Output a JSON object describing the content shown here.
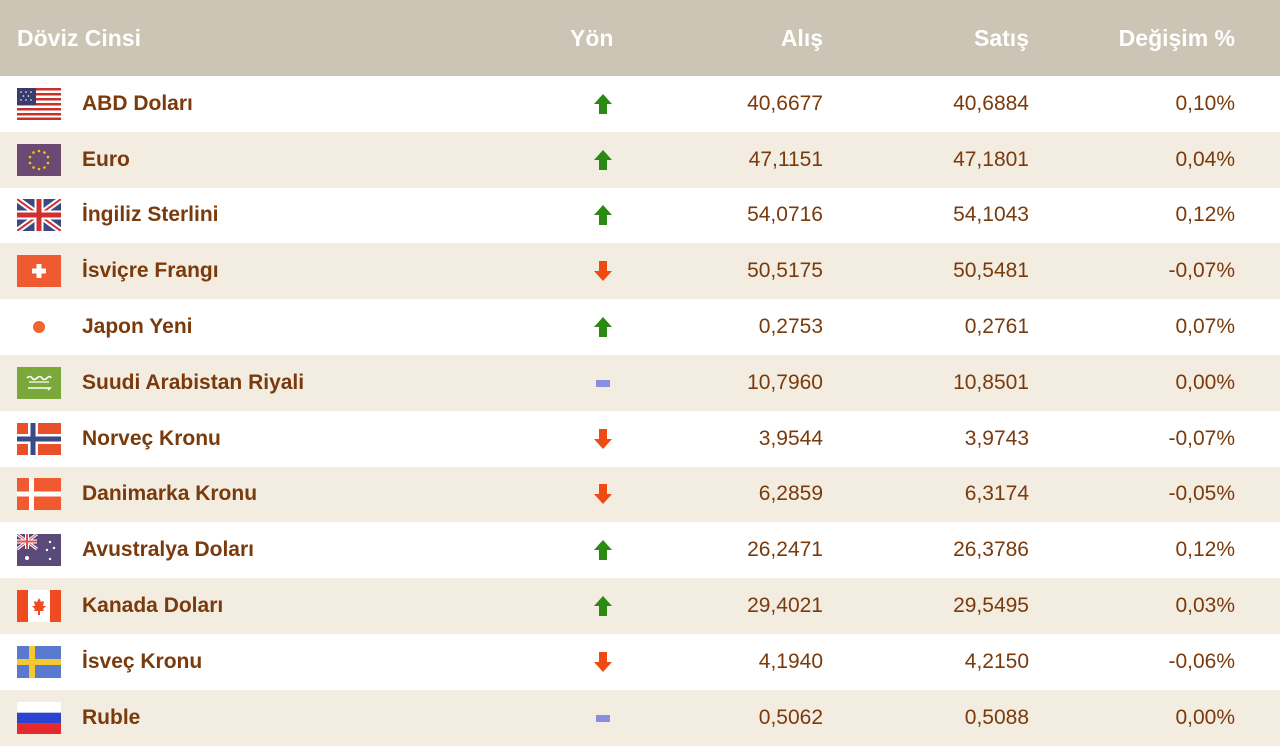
{
  "header": {
    "currency": "Döviz Cinsi",
    "direction": "Yön",
    "buy": "Alış",
    "sell": "Satış",
    "change": "Değişim %"
  },
  "colors": {
    "header_bg": "#ccc4b4",
    "row_alt": "#f2ece1",
    "text": "#7a3a0c",
    "up": "#2a8a14",
    "down": "#f04a14",
    "flat": "#8a8ee0"
  },
  "rows": [
    {
      "flag": "us-flag-icon",
      "name": "ABD Doları",
      "direction": "up",
      "buy": "40,6677",
      "sell": "40,6884",
      "change": "0,10%"
    },
    {
      "flag": "eu-flag-icon",
      "name": "Euro",
      "direction": "up",
      "buy": "47,1151",
      "sell": "47,1801",
      "change": "0,04%"
    },
    {
      "flag": "gb-flag-icon",
      "name": "İngiliz Sterlini",
      "direction": "up",
      "buy": "54,0716",
      "sell": "54,1043",
      "change": "0,12%"
    },
    {
      "flag": "ch-flag-icon",
      "name": "İsviçre Frangı",
      "direction": "down",
      "buy": "50,5175",
      "sell": "50,5481",
      "change": "-0,07%"
    },
    {
      "flag": "jp-flag-icon",
      "name": "Japon Yeni",
      "direction": "up",
      "buy": "0,2753",
      "sell": "0,2761",
      "change": "0,07%"
    },
    {
      "flag": "sa-flag-icon",
      "name": "Suudi Arabistan Riyali",
      "direction": "flat",
      "buy": "10,7960",
      "sell": "10,8501",
      "change": "0,00%"
    },
    {
      "flag": "no-flag-icon",
      "name": "Norveç Kronu",
      "direction": "down",
      "buy": "3,9544",
      "sell": "3,9743",
      "change": "-0,07%"
    },
    {
      "flag": "dk-flag-icon",
      "name": "Danimarka Kronu",
      "direction": "down",
      "buy": "6,2859",
      "sell": "6,3174",
      "change": "-0,05%"
    },
    {
      "flag": "au-flag-icon",
      "name": "Avustralya Doları",
      "direction": "up",
      "buy": "26,2471",
      "sell": "26,3786",
      "change": "0,12%"
    },
    {
      "flag": "ca-flag-icon",
      "name": "Kanada Doları",
      "direction": "up",
      "buy": "29,4021",
      "sell": "29,5495",
      "change": "0,03%"
    },
    {
      "flag": "se-flag-icon",
      "name": "İsveç Kronu",
      "direction": "down",
      "buy": "4,1940",
      "sell": "4,2150",
      "change": "-0,06%"
    },
    {
      "flag": "ru-flag-icon",
      "name": "Ruble",
      "direction": "flat",
      "buy": "0,5062",
      "sell": "0,5088",
      "change": "0,00%"
    }
  ]
}
